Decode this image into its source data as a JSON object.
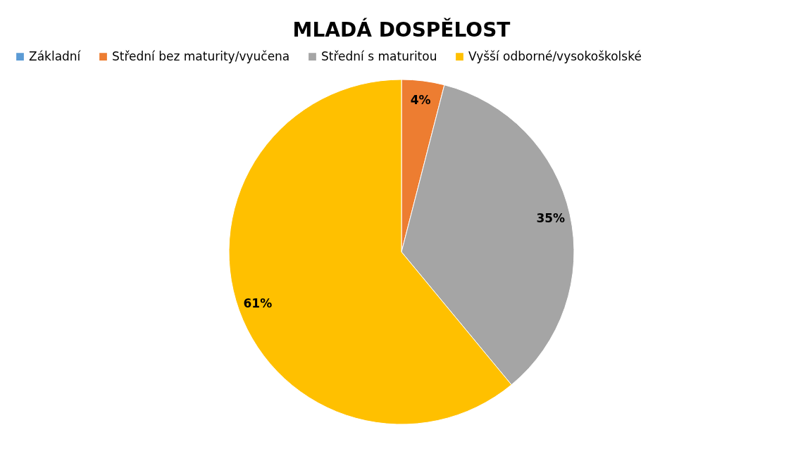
{
  "chart_data": {
    "type": "pie",
    "title": "MLADÁ DOSPĚLOST",
    "categories": [
      "Základní",
      "Střední bez maturity/vyučena",
      "Střední s maturitou",
      "Vyšší odborné/vysokoškolské"
    ],
    "values": [
      0,
      4,
      35,
      61
    ],
    "colors": [
      "#5b9bd5",
      "#ed7d31",
      "#a5a5a5",
      "#ffc000"
    ],
    "value_labels": [
      null,
      "4%",
      "35%",
      "61%"
    ],
    "legend": "top"
  }
}
